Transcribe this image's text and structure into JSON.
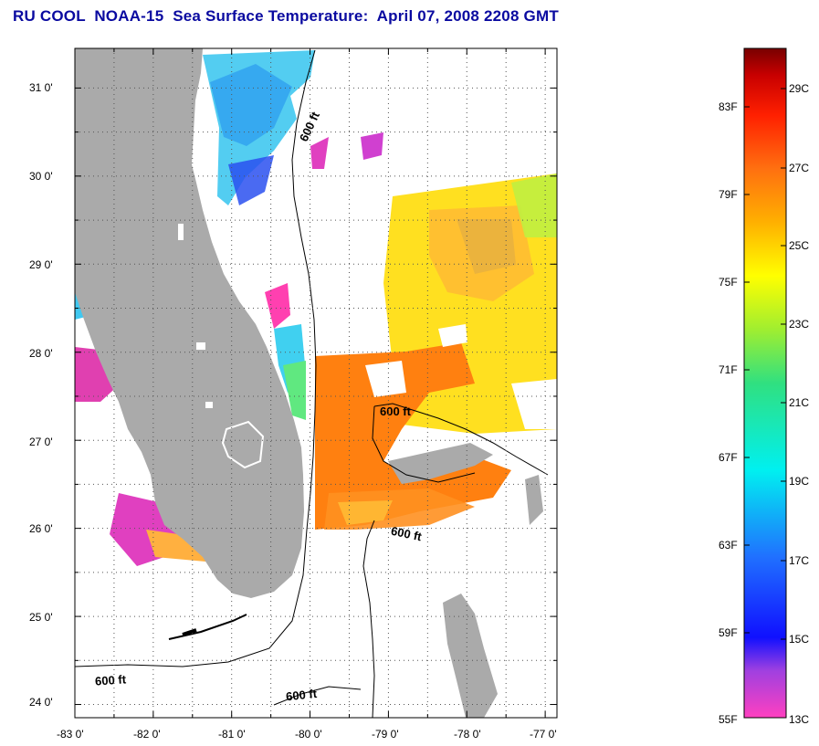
{
  "title": "RU COOL  NOAA-15  Sea Surface Temperature:  April 07, 2008 2208 GMT",
  "map": {
    "lat_ticks": [
      "31 0'",
      "30 0'",
      "29 0'",
      "28 0'",
      "27 0'",
      "26 0'",
      "25 0'",
      "24 0'"
    ],
    "lon_ticks": [
      "-83 0'",
      "-82 0'",
      "-81 0'",
      "-80 0'",
      "-79 0'",
      "-78 0'",
      "-77 0'"
    ],
    "lon_range": [
      -83,
      -76.85
    ],
    "lat_range": [
      23.85,
      31.45
    ],
    "contour_labels": [
      "600 ft",
      "600 ft",
      "600 ft",
      "600 ft",
      "600 ft"
    ],
    "colors": {
      "land": "#aaaaaa",
      "frame": "#000000"
    }
  },
  "colorbar": {
    "fahrenheit_labels": [
      "83F",
      "79F",
      "75F",
      "71F",
      "67F",
      "63F",
      "59F",
      "55F"
    ],
    "celsius_labels": [
      "29C",
      "27C",
      "25C",
      "23C",
      "21C",
      "19C",
      "17C",
      "15C",
      "13C"
    ]
  }
}
